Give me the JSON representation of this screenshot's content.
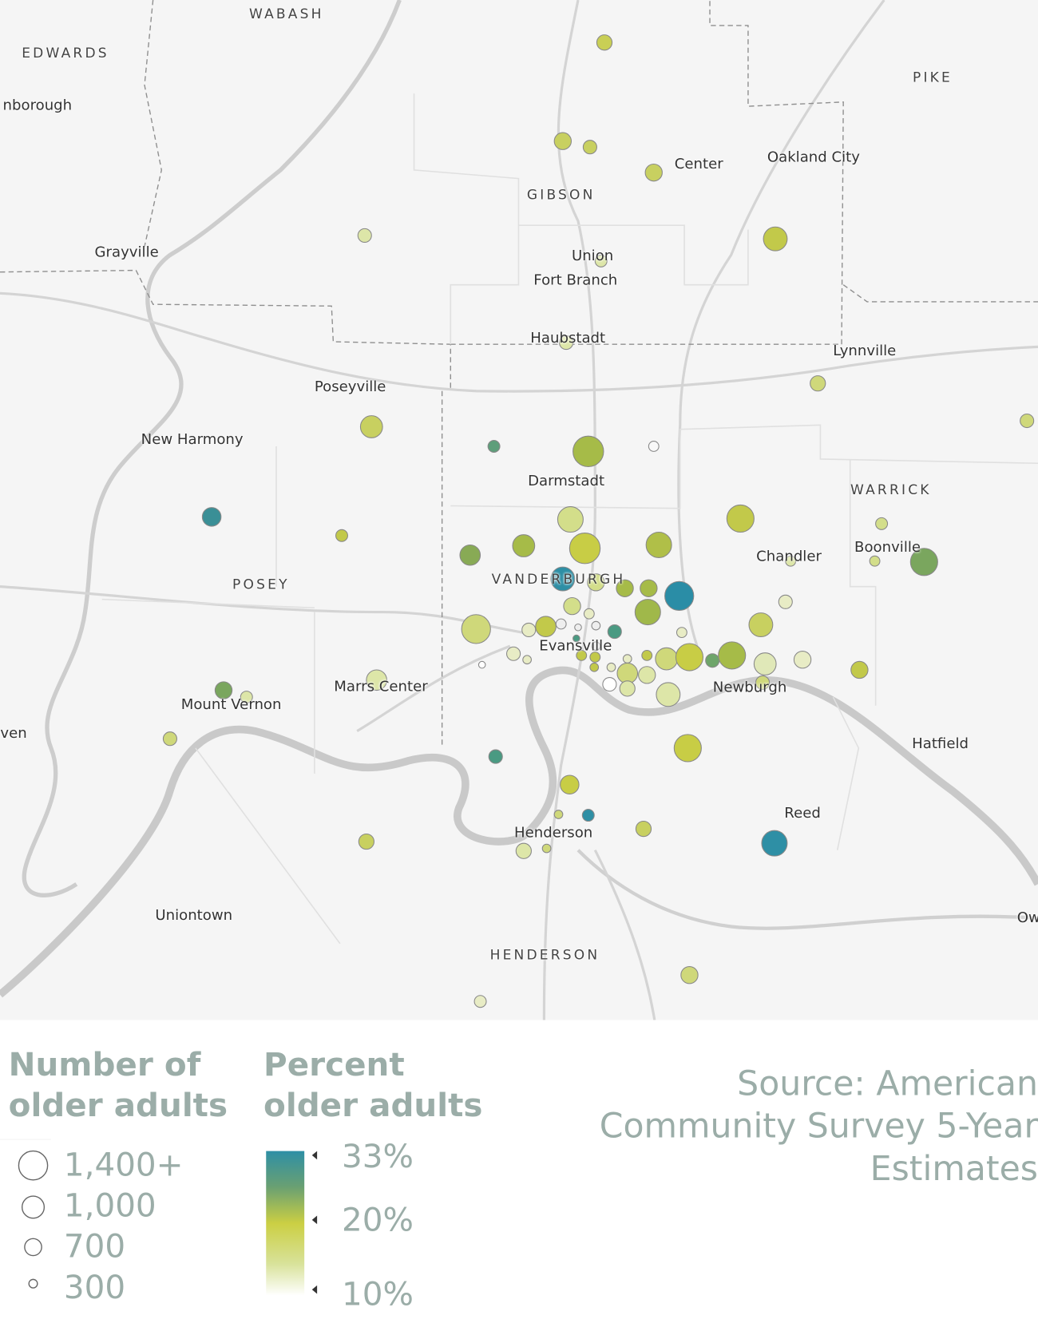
{
  "map": {
    "labels": {
      "wabash": "WABASH",
      "edwards": "EDWARDS",
      "nborough": "nborough",
      "pike": "PIKE",
      "center": "Center",
      "oakland_city": "Oakland City",
      "gibson": "GIBSON",
      "grayville": "Grayville",
      "union": "Union",
      "fort_branch": "Fort Branch",
      "haubstadt": "Haubstadt",
      "lynnville": "Lynnville",
      "poseyville": "Poseyville",
      "new_harmony": "New Harmony",
      "darmstadt": "Darmstadt",
      "warrick": "WARRICK",
      "boonville": "Boonville",
      "chandler": "Chandler",
      "posey": "POSEY",
      "vanderburgh": "VANDERBURGH",
      "evansville": "Evansville",
      "marrs_center": "Marrs Center",
      "newburgh": "Newburgh",
      "mount_vernon": "Mount Vernon",
      "ven": "ven",
      "hatfield": "Hatfield",
      "reed": "Reed",
      "henderson_city": "Henderson",
      "uniontown": "Uniontown",
      "henderson_county": "HENDERSON",
      "ow": "Ow"
    },
    "colors": {
      "background": "#f5f5f5",
      "road": "#d2d2d2",
      "river": "#c8c8c8",
      "border": "#9a9a9a"
    }
  },
  "legend": {
    "size": {
      "title_line1": "Number of",
      "title_line2": "older adults",
      "items": [
        {
          "label": "1,400+"
        },
        {
          "label": "1,000"
        },
        {
          "label": "700"
        },
        {
          "label": "300"
        }
      ]
    },
    "color": {
      "title_line1": "Percent",
      "title_line2": "older adults",
      "stops": [
        {
          "label": "33%",
          "color": "#2e8fa5"
        },
        {
          "label": "20%",
          "color": "#cbcf43"
        },
        {
          "label": "10%",
          "color": "#ffffff"
        }
      ]
    },
    "source": {
      "line1": "Source: American",
      "line2": "Community Survey 5-Year",
      "line3": "Estimates"
    },
    "text_color": "#9bada8"
  }
}
